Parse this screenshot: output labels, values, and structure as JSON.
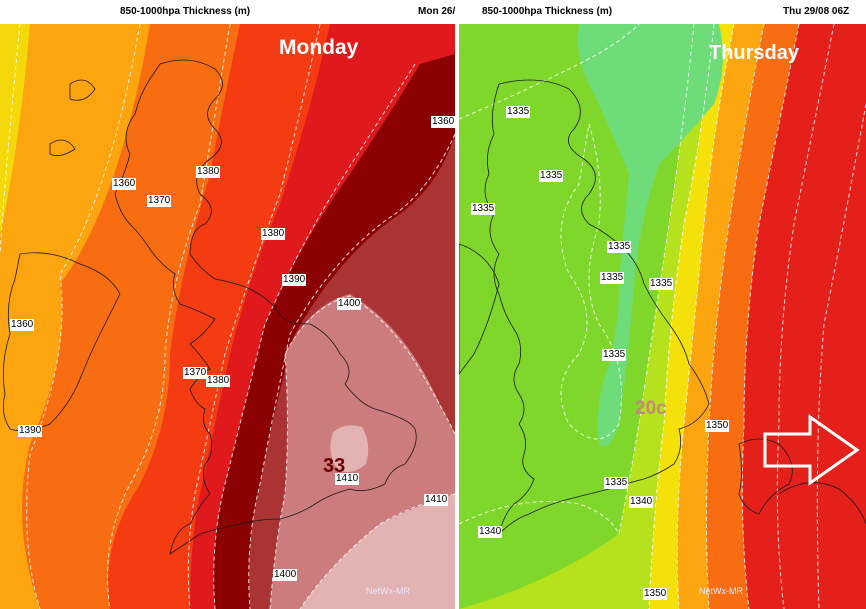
{
  "left_panel": {
    "header_title": "850-1000hpa Thickness (m)",
    "header_date": "Mon 26/",
    "day_label": "Monday",
    "temperature_label": "33",
    "credit": "NetWx-MR",
    "contour_labels": [
      "1360",
      "1370",
      "1380",
      "1380",
      "1390",
      "1390",
      "1400",
      "1360",
      "1370",
      "1380",
      "1360",
      "1410",
      "1410",
      "1400"
    ],
    "colors": {
      "darkest": "#8b0000",
      "dark": "#a51717",
      "red": "#e0191c",
      "redorange": "#f43b12",
      "orange": "#f86d12",
      "amber": "#fca50e",
      "yellow": "#f5d80a",
      "pink": "#cc7c7c",
      "lightpink": "#e3b3b3",
      "maroon": "#aa3333"
    }
  },
  "right_panel": {
    "header_title": "850-1000hpa Thickness (m)",
    "header_date": "Thu 29/08 06Z",
    "day_label": "Thursday",
    "temperature_label": "20c",
    "credit": "NetWx-MR",
    "arrow_icon": "right-arrow-icon",
    "contour_labels": [
      "1335",
      "1335",
      "1335",
      "1335",
      "1335",
      "1335",
      "1335",
      "1335",
      "1350",
      "1340",
      "1340",
      "1350"
    ],
    "colors": {
      "green": "#7fd72b",
      "teal": "#6fdc7a",
      "lime": "#b5e21c",
      "yellow": "#f5e10a",
      "amber": "#fca50e",
      "orange": "#f86d12",
      "red": "#e5201b"
    }
  }
}
